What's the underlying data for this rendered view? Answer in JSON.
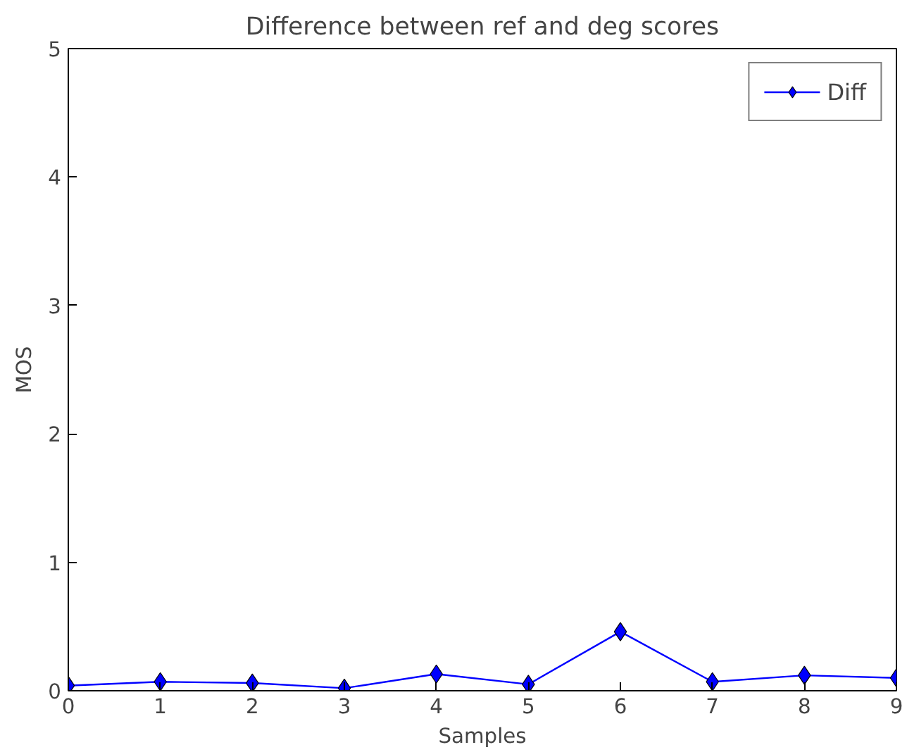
{
  "chart_data": {
    "type": "line",
    "title": "Difference between ref and deg scores",
    "xlabel": "Samples",
    "ylabel": "MOS",
    "x": [
      0,
      1,
      2,
      3,
      4,
      5,
      6,
      7,
      8,
      9
    ],
    "series": [
      {
        "name": "Diff",
        "color": "#0000ff",
        "values": [
          0.04,
          0.07,
          0.06,
          0.02,
          0.13,
          0.05,
          0.46,
          0.07,
          0.12,
          0.1
        ]
      }
    ],
    "xlim": [
      0,
      9
    ],
    "xticks": [
      0,
      1,
      2,
      3,
      4,
      5,
      6,
      7,
      8,
      9
    ],
    "ylim": [
      0,
      5
    ],
    "yticks": [
      0,
      1,
      2,
      3,
      4,
      5
    ],
    "marker": "diamond",
    "line_style": "solid",
    "grid": false,
    "legend": "top right"
  }
}
